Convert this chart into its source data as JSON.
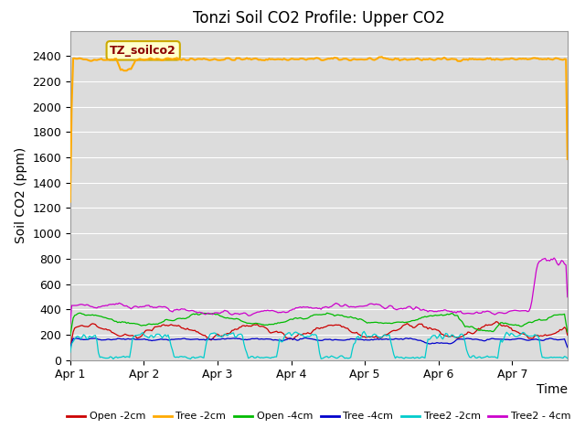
{
  "title": "Tonzi Soil CO2 Profile: Upper CO2",
  "ylabel": "Soil CO2 (ppm)",
  "xlabel": "Time",
  "xlim_days": 6.75,
  "ylim": [
    0,
    2600
  ],
  "yticks": [
    0,
    200,
    400,
    600,
    800,
    1000,
    1200,
    1400,
    1600,
    1800,
    2000,
    2200,
    2400
  ],
  "xtick_labels": [
    "Apr 1",
    "Apr 2",
    "Apr 3",
    "Apr 4",
    "Apr 5",
    "Apr 6",
    "Apr 7"
  ],
  "background_color": "#dcdcdc",
  "legend_entries": [
    "Open -2cm",
    "Tree -2cm",
    "Open -4cm",
    "Tree -4cm",
    "Tree2 -2cm",
    "Tree2 - 4cm"
  ],
  "legend_colors": [
    "#cc0000",
    "#ffaa00",
    "#00bb00",
    "#0000cc",
    "#00cccc",
    "#cc00cc"
  ],
  "annotation_text": "TZ_soilco2",
  "title_fontsize": 12,
  "axis_fontsize": 10,
  "tick_fontsize": 9
}
